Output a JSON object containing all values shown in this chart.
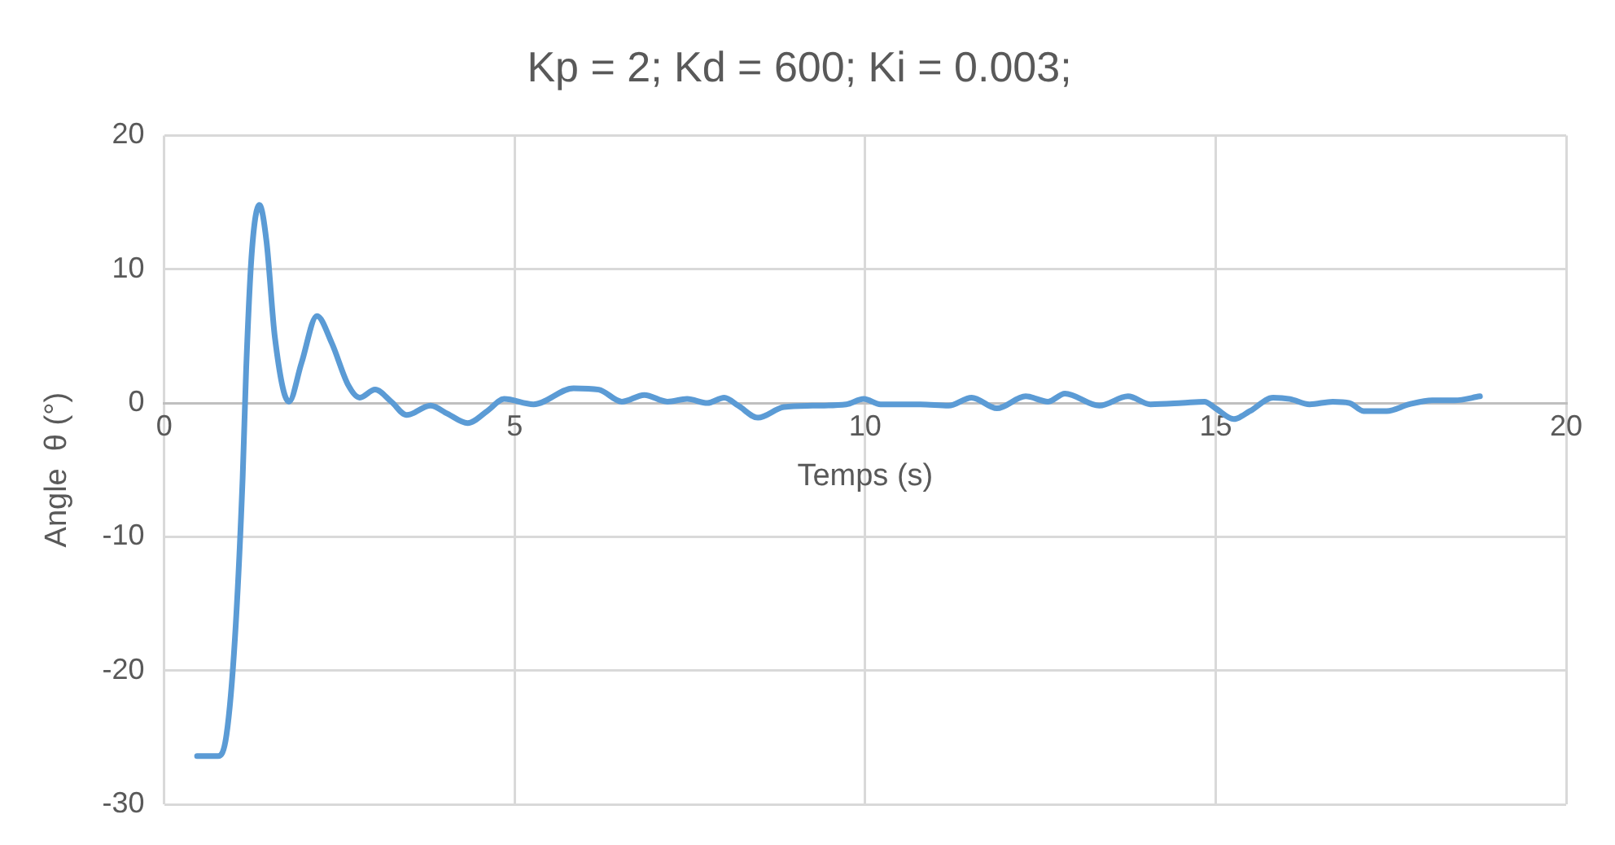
{
  "chart_data": {
    "type": "line",
    "title": "Kp = 2; Kd = 600; Ki = 0.003;",
    "xlabel": "Temps (s)",
    "ylabel": "Angle  θ (°)",
    "xlim": [
      0,
      20
    ],
    "xticks": [
      0,
      5,
      10,
      15,
      20
    ],
    "ylim": [
      -30,
      20
    ],
    "yticks": [
      -30,
      -20,
      -10,
      0,
      10,
      20
    ],
    "grid": true,
    "legend": false,
    "marker": "none",
    "line_style": "solid",
    "series": [
      {
        "color": "#5b9bd5",
        "x": [
          0.47,
          0.77,
          0.89,
          1.01,
          1.12,
          1.17,
          1.25,
          1.36,
          1.46,
          1.58,
          1.78,
          1.96,
          2.18,
          2.39,
          2.63,
          2.79,
          3.01,
          3.24,
          3.46,
          3.8,
          4.04,
          4.33,
          4.61,
          4.85,
          5.27,
          5.84,
          6.2,
          6.53,
          6.85,
          7.18,
          7.46,
          7.75,
          7.99,
          8.19,
          8.47,
          8.84,
          9.25,
          9.73,
          9.98,
          10.22,
          10.79,
          11.19,
          11.52,
          11.88,
          12.29,
          12.61,
          12.85,
          13.34,
          13.75,
          14.07,
          14.52,
          14.84,
          15.0,
          15.26,
          15.49,
          15.82,
          16.06,
          16.34,
          16.67,
          16.91,
          17.11,
          17.44,
          17.76,
          18.09,
          18.41,
          18.77
        ],
        "values": [
          -26.4,
          -26.4,
          -24.8,
          -17.6,
          -5.6,
          2.5,
          11.2,
          14.8,
          12.1,
          4.9,
          0.1,
          3.0,
          6.5,
          4.5,
          1.3,
          0.4,
          1.0,
          0.1,
          -0.9,
          -0.2,
          -0.8,
          -1.5,
          -0.6,
          0.3,
          -0.1,
          1.1,
          1.0,
          0.1,
          0.6,
          0.1,
          0.3,
          0.0,
          0.4,
          -0.2,
          -1.1,
          -0.3,
          -0.2,
          -0.1,
          0.3,
          -0.1,
          -0.1,
          -0.2,
          0.4,
          -0.4,
          0.5,
          0.1,
          0.7,
          -0.2,
          0.5,
          -0.1,
          0.0,
          0.1,
          -0.4,
          -1.2,
          -0.6,
          0.4,
          0.3,
          -0.1,
          0.1,
          0.0,
          -0.6,
          -0.6,
          -0.1,
          0.2,
          0.2,
          0.5
        ]
      }
    ]
  }
}
